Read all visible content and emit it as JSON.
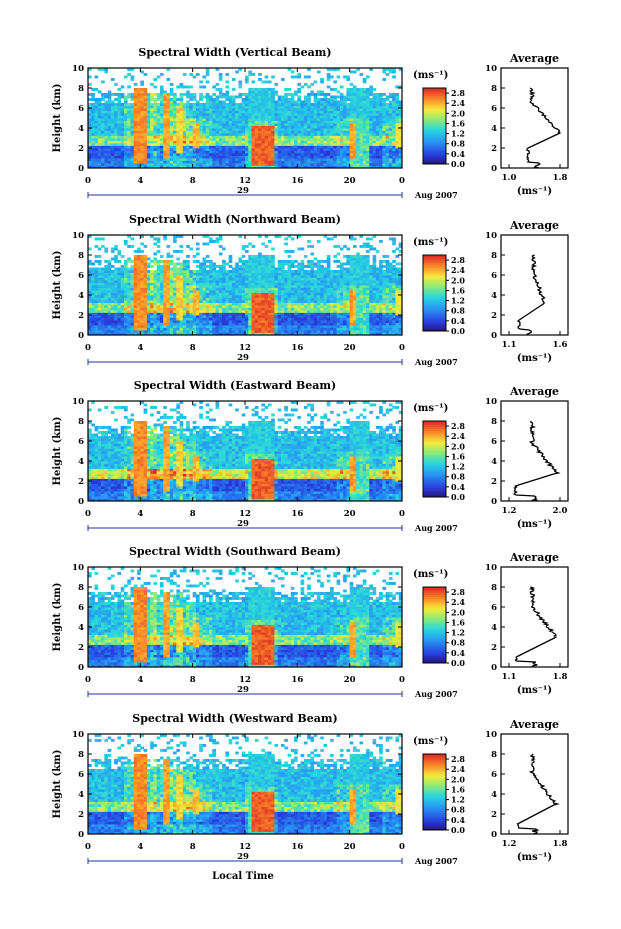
{
  "figure": {
    "xlabel": "Local Time",
    "date_label": "Aug 2007",
    "day_label": "29",
    "avg_title": "Average",
    "avg_xlabel": "(ms⁻¹)",
    "cbar_unit": "(ms⁻¹)",
    "ylabel": "Height (km)"
  },
  "chart_data": [
    {
      "type": "heatmap",
      "title": "Spectral Width (Vertical Beam)",
      "ylabel": "Height (km)",
      "xlabel": "Local Time",
      "x_ticks": [
        "0",
        "4",
        "8",
        "12",
        "16",
        "20",
        "0"
      ],
      "y_ticks": [
        "0",
        "2",
        "4",
        "6",
        "8",
        "10"
      ],
      "xlim": [
        0,
        24
      ],
      "ylim": [
        0,
        10
      ],
      "colorbar": {
        "label": "(ms⁻¹)",
        "ticks": [
          "0.0",
          "0.4",
          "0.8",
          "1.2",
          "1.6",
          "2.0",
          "2.4",
          "2.8"
        ],
        "range": [
          0,
          3.0
        ]
      },
      "average_profile": {
        "title": "Average",
        "xlabel": "(ms⁻¹)",
        "x_ticks": [
          "1.0",
          "1.8"
        ],
        "xlim": [
          1.0,
          1.8
        ],
        "y_ticks": [
          "0",
          "2",
          "4",
          "6",
          "8",
          "10"
        ],
        "ylim": [
          0,
          10
        ],
        "peak_value": 1.8,
        "peak_height_km": 3.5,
        "low_value": 1.3,
        "low_height_km": 2.0
      }
    },
    {
      "type": "heatmap",
      "title": "Spectral Width (Northward Beam)",
      "ylabel": "Height (km)",
      "xlabel": "Local Time",
      "x_ticks": [
        "0",
        "4",
        "8",
        "12",
        "16",
        "20",
        "0"
      ],
      "y_ticks": [
        "0",
        "2",
        "4",
        "6",
        "8",
        "10"
      ],
      "xlim": [
        0,
        24
      ],
      "ylim": [
        0,
        10
      ],
      "colorbar": {
        "label": "(ms⁻¹)",
        "ticks": [
          "0.0",
          "0.4",
          "0.8",
          "1.2",
          "1.6",
          "2.0",
          "2.4",
          "2.8"
        ],
        "range": [
          0,
          3.0
        ]
      },
      "average_profile": {
        "title": "Average",
        "xlabel": "(ms⁻¹)",
        "x_ticks": [
          "1.1",
          "1.6"
        ],
        "xlim": [
          1.1,
          1.6
        ],
        "y_ticks": [
          "0",
          "2",
          "4",
          "6",
          "8",
          "10"
        ],
        "ylim": [
          0,
          10
        ],
        "peak_value": 1.45,
        "peak_height_km": 3.2,
        "low_value": 1.2,
        "low_height_km": 1.5
      }
    },
    {
      "type": "heatmap",
      "title": "Spectral Width (Eastward Beam)",
      "ylabel": "Height (km)",
      "xlabel": "Local Time",
      "x_ticks": [
        "0",
        "4",
        "8",
        "12",
        "16",
        "20",
        "0"
      ],
      "y_ticks": [
        "0",
        "2",
        "4",
        "6",
        "8",
        "10"
      ],
      "xlim": [
        0,
        24
      ],
      "ylim": [
        0,
        10
      ],
      "colorbar": {
        "label": "(ms⁻¹)",
        "ticks": [
          "0.0",
          "0.4",
          "0.8",
          "1.2",
          "1.6",
          "2.0",
          "2.4",
          "2.8"
        ],
        "range": [
          0,
          3.0
        ]
      },
      "average_profile": {
        "title": "Average",
        "xlabel": "(ms⁻¹)",
        "x_ticks": [
          "1.2",
          "2.0"
        ],
        "xlim": [
          1.2,
          2.0
        ],
        "y_ticks": [
          "0",
          "2",
          "4",
          "6",
          "8",
          "10"
        ],
        "ylim": [
          0,
          10
        ],
        "peak_value": 1.95,
        "peak_height_km": 2.8,
        "low_value": 1.3,
        "low_height_km": 1.5
      }
    },
    {
      "type": "heatmap",
      "title": "Spectral Width (Southward Beam)",
      "ylabel": "Height (km)",
      "xlabel": "Local Time",
      "x_ticks": [
        "0",
        "4",
        "8",
        "12",
        "16",
        "20",
        "0"
      ],
      "y_ticks": [
        "0",
        "2",
        "4",
        "6",
        "8",
        "10"
      ],
      "xlim": [
        0,
        24
      ],
      "ylim": [
        0,
        10
      ],
      "colorbar": {
        "label": "(ms⁻¹)",
        "ticks": [
          "0.0",
          "0.4",
          "0.8",
          "1.2",
          "1.6",
          "2.0",
          "2.4",
          "2.8"
        ],
        "range": [
          0,
          3.0
        ]
      },
      "average_profile": {
        "title": "Average",
        "xlabel": "(ms⁻¹)",
        "x_ticks": [
          "1.1",
          "1.8"
        ],
        "xlim": [
          1.1,
          1.8
        ],
        "y_ticks": [
          "0",
          "2",
          "4",
          "6",
          "8",
          "10"
        ],
        "ylim": [
          0,
          10
        ],
        "peak_value": 1.75,
        "peak_height_km": 3.0,
        "low_value": 1.2,
        "low_height_km": 1.0
      }
    },
    {
      "type": "heatmap",
      "title": "Spectral Width (Westward Beam)",
      "ylabel": "Height (km)",
      "xlabel": "Local Time",
      "x_ticks": [
        "0",
        "4",
        "8",
        "12",
        "16",
        "20",
        "0"
      ],
      "y_ticks": [
        "0",
        "2",
        "4",
        "6",
        "8",
        "10"
      ],
      "xlim": [
        0,
        24
      ],
      "ylim": [
        0,
        10
      ],
      "colorbar": {
        "label": "(ms⁻¹)",
        "ticks": [
          "0.0",
          "0.4",
          "0.8",
          "1.2",
          "1.6",
          "2.0",
          "2.4",
          "2.8"
        ],
        "range": [
          0,
          3.0
        ]
      },
      "average_profile": {
        "title": "Average",
        "xlabel": "(ms⁻¹)",
        "x_ticks": [
          "1.2",
          "1.8"
        ],
        "xlim": [
          1.2,
          1.8
        ],
        "y_ticks": [
          "0",
          "2",
          "4",
          "6",
          "8",
          "10"
        ],
        "ylim": [
          0,
          10
        ],
        "peak_value": 1.75,
        "peak_height_km": 3.0,
        "low_value": 1.3,
        "low_height_km": 1.0
      }
    }
  ],
  "features": {
    "red_regions": [
      {
        "time_start": 3.5,
        "time_end": 4.6,
        "height_start": 0.5,
        "height_end": 8.0,
        "value": 2.7
      },
      {
        "time_start": 5.8,
        "time_end": 6.3,
        "height_start": 1.0,
        "height_end": 7.5,
        "value": 2.6
      },
      {
        "time_start": 6.7,
        "time_end": 7.2,
        "height_start": 1.5,
        "height_end": 6.0,
        "value": 2.4
      },
      {
        "time_start": 8.0,
        "time_end": 8.5,
        "height_start": 2.0,
        "height_end": 4.5,
        "value": 2.5
      },
      {
        "time_start": 12.4,
        "time_end": 14.2,
        "height_start": 0.3,
        "height_end": 4.3,
        "value": 2.9
      },
      {
        "time_start": 20.0,
        "time_end": 20.5,
        "height_start": 1.0,
        "height_end": 4.5,
        "value": 2.6
      },
      {
        "time_start": 23.5,
        "time_end": 24.0,
        "height_start": 2.0,
        "height_end": 4.5,
        "value": 2.3
      }
    ]
  }
}
